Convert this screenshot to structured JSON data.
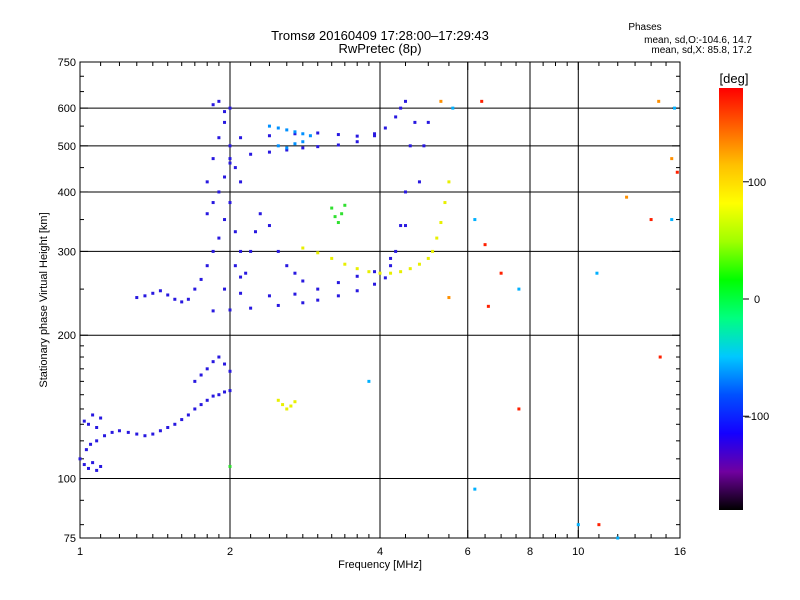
{
  "chart_data": {
    "type": "scatter",
    "title": "Tromsø 20160409 17:28:00–17:29:43",
    "subtitle": "RwPretec (8p)",
    "xlabel": "Frequency [MHz]",
    "ylabel": "Stationary phase Virtual Height [km]",
    "x_scale": "log",
    "y_scale": "log",
    "xlim": [
      1,
      16
    ],
    "ylim": [
      75,
      750
    ],
    "x_ticks": [
      1,
      2,
      4,
      6,
      8,
      10,
      16
    ],
    "x_tick_labels": [
      "1",
      "2",
      "4",
      "6",
      "8",
      "10",
      "16"
    ],
    "x_minor_ticks": [
      1.1,
      1.2,
      1.3,
      1.4,
      1.5,
      1.6,
      1.7,
      1.8,
      1.9,
      2.2,
      2.4,
      2.6,
      2.8,
      3,
      3.2,
      3.4,
      3.6,
      3.8,
      4.5,
      5,
      5.5,
      6.5,
      7,
      7.5,
      8.5,
      9,
      9.5,
      11,
      12,
      13,
      14,
      15
    ],
    "y_ticks": [
      75,
      100,
      200,
      300,
      400,
      500,
      600,
      750
    ],
    "y_tick_labels": [
      "75",
      "100",
      "200",
      "300",
      "400",
      "500",
      "600",
      "750"
    ],
    "y_minor_ticks": [
      80,
      90,
      110,
      120,
      130,
      140,
      150,
      160,
      170,
      180,
      190,
      250,
      350,
      450,
      550,
      650,
      700
    ],
    "grid": true,
    "grid_x": [
      2,
      4,
      6,
      8,
      10
    ],
    "grid_y": [
      100,
      200,
      300,
      400,
      500,
      600
    ],
    "phase_stats": {
      "heading": "Phases",
      "line1": "mean, sd,O:-104.6, 14.7",
      "line2": "mean, sd,X:  85.8, 17.2"
    },
    "colorbar": {
      "label": "[deg]",
      "range": [
        -180,
        180
      ],
      "ticks": [
        100,
        0,
        -100
      ],
      "tick_labels": [
        "100",
        "0",
        "–100"
      ],
      "colors": [
        "#000000",
        "#7000a0",
        "#1400ff",
        "#0050ff",
        "#00c8ff",
        "#00ff80",
        "#00ff00",
        "#a0ff00",
        "#ffff00",
        "#ffc000",
        "#ff6000",
        "#ff0000"
      ]
    },
    "series": [
      {
        "color": "#2818e0",
        "phase": -105,
        "points": [
          [
            1.0,
            110
          ],
          [
            1.02,
            107
          ],
          [
            1.04,
            105
          ],
          [
            1.06,
            108
          ],
          [
            1.08,
            104
          ],
          [
            1.1,
            106
          ],
          [
            1.03,
            115
          ],
          [
            1.05,
            118
          ],
          [
            1.08,
            120
          ],
          [
            1.12,
            123
          ],
          [
            1.16,
            125
          ],
          [
            1.2,
            126
          ],
          [
            1.25,
            125
          ],
          [
            1.3,
            124
          ],
          [
            1.35,
            123
          ],
          [
            1.4,
            124
          ],
          [
            1.45,
            126
          ],
          [
            1.5,
            128
          ],
          [
            1.55,
            130
          ],
          [
            1.6,
            133
          ],
          [
            1.65,
            136
          ],
          [
            1.7,
            140
          ],
          [
            1.75,
            143
          ],
          [
            1.8,
            146
          ],
          [
            1.85,
            149
          ],
          [
            1.9,
            150
          ],
          [
            1.95,
            152
          ],
          [
            2.0,
            153
          ],
          [
            1.7,
            160
          ],
          [
            1.75,
            165
          ],
          [
            1.8,
            170
          ],
          [
            1.85,
            176
          ],
          [
            1.9,
            180
          ],
          [
            1.95,
            174
          ],
          [
            2.0,
            168
          ],
          [
            1.02,
            132
          ],
          [
            1.04,
            130
          ],
          [
            1.06,
            136
          ],
          [
            1.08,
            128
          ],
          [
            1.1,
            134
          ]
        ]
      },
      {
        "color": "#2818e0",
        "phase": -100,
        "points": [
          [
            1.3,
            240
          ],
          [
            1.35,
            242
          ],
          [
            1.4,
            245
          ],
          [
            1.45,
            248
          ],
          [
            1.5,
            243
          ],
          [
            1.55,
            238
          ],
          [
            1.6,
            235
          ],
          [
            1.65,
            238
          ],
          [
            1.7,
            250
          ],
          [
            1.75,
            262
          ],
          [
            1.8,
            280
          ],
          [
            1.85,
            300
          ],
          [
            1.9,
            320
          ],
          [
            1.95,
            350
          ],
          [
            2.0,
            380
          ],
          [
            1.8,
            360
          ],
          [
            1.85,
            380
          ],
          [
            1.9,
            400
          ],
          [
            1.95,
            430
          ],
          [
            2.0,
            460
          ],
          [
            1.8,
            420
          ],
          [
            1.85,
            470
          ],
          [
            1.9,
            520
          ],
          [
            1.95,
            560
          ],
          [
            2.0,
            600
          ],
          [
            1.85,
            610
          ],
          [
            1.9,
            620
          ],
          [
            1.95,
            590
          ],
          [
            2.0,
            500
          ],
          [
            2.05,
            450
          ],
          [
            2.1,
            420
          ],
          [
            2.05,
            330
          ],
          [
            2.1,
            300
          ],
          [
            2.05,
            280
          ],
          [
            2.1,
            265
          ],
          [
            2.15,
            270
          ],
          [
            2.2,
            300
          ],
          [
            2.25,
            330
          ],
          [
            2.3,
            360
          ],
          [
            2.4,
            340
          ],
          [
            2.5,
            300
          ],
          [
            2.6,
            280
          ],
          [
            2.7,
            270
          ],
          [
            2.8,
            260
          ]
        ]
      },
      {
        "color": "#2818e0",
        "phase": -95,
        "points": [
          [
            1.85,
            225
          ],
          [
            2.0,
            226
          ],
          [
            2.2,
            228
          ],
          [
            2.5,
            231
          ],
          [
            2.8,
            234
          ],
          [
            3.0,
            237
          ],
          [
            3.3,
            242
          ],
          [
            3.6,
            248
          ],
          [
            3.9,
            256
          ],
          [
            4.1,
            264
          ],
          [
            4.2,
            280
          ],
          [
            4.3,
            300
          ],
          [
            4.4,
            340
          ],
          [
            4.5,
            400
          ],
          [
            4.6,
            500
          ],
          [
            4.7,
            560
          ],
          [
            1.95,
            250
          ],
          [
            2.1,
            245
          ],
          [
            2.4,
            242
          ],
          [
            2.7,
            244
          ],
          [
            3.0,
            250
          ],
          [
            3.3,
            258
          ],
          [
            3.6,
            266
          ],
          [
            3.9,
            272
          ],
          [
            4.2,
            290
          ],
          [
            4.5,
            340
          ],
          [
            4.8,
            420
          ],
          [
            4.9,
            500
          ],
          [
            5.0,
            560
          ]
        ]
      },
      {
        "color": "#2818e0",
        "phase": -110,
        "points": [
          [
            2.0,
            470
          ],
          [
            2.2,
            480
          ],
          [
            2.4,
            485
          ],
          [
            2.6,
            490
          ],
          [
            2.8,
            495
          ],
          [
            3.0,
            498
          ],
          [
            3.3,
            502
          ],
          [
            3.6,
            510
          ],
          [
            3.9,
            525
          ],
          [
            4.1,
            545
          ],
          [
            4.3,
            575
          ],
          [
            4.4,
            600
          ],
          [
            4.5,
            620
          ],
          [
            2.1,
            520
          ],
          [
            2.4,
            525
          ],
          [
            2.7,
            530
          ],
          [
            3.0,
            532
          ],
          [
            3.3,
            528
          ],
          [
            3.6,
            524
          ],
          [
            3.9,
            530
          ]
        ]
      },
      {
        "color": "#0090ff",
        "phase": -60,
        "points": [
          [
            2.4,
            550
          ],
          [
            2.5,
            545
          ],
          [
            2.6,
            540
          ],
          [
            2.7,
            535
          ],
          [
            2.8,
            530
          ],
          [
            2.9,
            525
          ],
          [
            2.5,
            500
          ],
          [
            2.6,
            495
          ],
          [
            2.7,
            505
          ],
          [
            2.8,
            510
          ]
        ]
      },
      {
        "color": "#e8f000",
        "phase": 100,
        "points": [
          [
            2.8,
            305
          ],
          [
            3.0,
            298
          ],
          [
            3.2,
            290
          ],
          [
            3.4,
            282
          ],
          [
            3.6,
            276
          ],
          [
            3.8,
            272
          ],
          [
            4.0,
            270
          ],
          [
            4.2,
            270
          ],
          [
            4.4,
            272
          ],
          [
            4.6,
            276
          ],
          [
            4.8,
            282
          ],
          [
            5.0,
            290
          ],
          [
            5.1,
            300
          ],
          [
            5.2,
            320
          ],
          [
            5.3,
            345
          ],
          [
            5.4,
            380
          ],
          [
            5.5,
            420
          ],
          [
            2.5,
            146
          ],
          [
            2.55,
            143
          ],
          [
            2.6,
            140
          ],
          [
            2.65,
            142
          ],
          [
            2.7,
            145
          ]
        ]
      },
      {
        "color": "#30e030",
        "phase": 40,
        "points": [
          [
            3.2,
            370
          ],
          [
            3.25,
            355
          ],
          [
            3.3,
            345
          ],
          [
            3.35,
            360
          ],
          [
            3.4,
            375
          ],
          [
            2.0,
            106
          ]
        ]
      },
      {
        "color": "#ff2000",
        "phase": 170,
        "points": [
          [
            6.4,
            620
          ],
          [
            7.6,
            140
          ],
          [
            6.5,
            310
          ],
          [
            6.6,
            230
          ],
          [
            7.0,
            270
          ],
          [
            14.6,
            180
          ],
          [
            11.0,
            80
          ],
          [
            14.0,
            350
          ],
          [
            15.8,
            440
          ]
        ]
      },
      {
        "color": "#ff9000",
        "phase": 140,
        "points": [
          [
            5.3,
            620
          ],
          [
            5.5,
            240
          ],
          [
            14.5,
            620
          ],
          [
            12.5,
            390
          ],
          [
            15.4,
            470
          ]
        ]
      },
      {
        "color": "#00b0ff",
        "phase": -40,
        "points": [
          [
            6.2,
            350
          ],
          [
            6.2,
            95
          ],
          [
            10.9,
            270
          ],
          [
            15.4,
            350
          ],
          [
            15.6,
            600
          ],
          [
            10.0,
            80
          ],
          [
            12.0,
            75
          ],
          [
            5.6,
            600
          ],
          [
            3.8,
            160
          ],
          [
            7.6,
            250
          ]
        ]
      }
    ]
  }
}
